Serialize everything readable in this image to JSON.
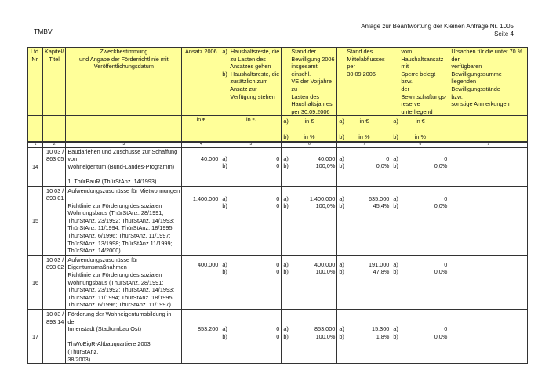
{
  "header": {
    "left": "TMBV",
    "right_line1": "Anlage zur Beantwortung der Kleinen Anfrage Nr. 1005",
    "right_line2": "Seite 4"
  },
  "columns": {
    "c1": [
      "Lfd.",
      "Nr."
    ],
    "c2": [
      "Kapitel/",
      "Titel"
    ],
    "c3": [
      "Zweckbestimmung",
      "und Angabe der Förderrichtlinie mit",
      "Veröffentlichungsdatum"
    ],
    "c4": [
      "Ansatz 2006"
    ],
    "c5": [
      "a)  Haushaltsreste, die",
      "     zu Lasten des",
      "     Ansatzes gehen",
      "b)  Haushaltsreste, die",
      "     zusätzlich zum",
      "     Ansatz zur",
      "     Verfügung stehen"
    ],
    "c6": [
      "Stand der",
      "Bewilligung 2006",
      "insgesamt einschl.",
      "VE der Vorjahre zu",
      "Lasten des",
      "Haushaltsjahres",
      "per 30.09.2006"
    ],
    "c7": [
      "Stand des",
      "Mittelabflusses per",
      "30.09.2006"
    ],
    "c8": [
      "vom",
      "Haushaltsansatz mit",
      "Sperre belegt bzw.",
      "der",
      "Bewirtschaftungs-",
      "reserve unterliegend"
    ],
    "c9": [
      "Ursachen für die unter 70 % der",
      "verfügbaren Bewilligungssumme",
      "liegenden Bewilligungsstände",
      "bzw.",
      "sonstige Anmerkungen"
    ]
  },
  "units": {
    "eur": "in €",
    "pct": "in %",
    "a": "a)",
    "b": "b)"
  },
  "index": [
    "1",
    "2",
    "3",
    "4",
    "5",
    "6",
    "7",
    "8",
    "9"
  ],
  "rows": [
    {
      "nr": "14",
      "kap": [
        "10 03 /",
        "863 05"
      ],
      "text": [
        "Baudarlehen und Zuschüsse zur Schaffung von",
        "Wohneigentum (Bund-Landes-Programm)",
        "",
        "1. ThürBauR (ThürStAnz. 14/1993)"
      ],
      "ansatz": "40.000",
      "c5a": "0",
      "c5b": "0",
      "c6a": "40.000",
      "c6b": "100,0%",
      "c7a": "0",
      "c7b": "0,0%",
      "c8a": "0",
      "c8b": "0,0%",
      "c9": ""
    },
    {
      "nr": "15",
      "kap": [
        "10 03 /",
        "893 01"
      ],
      "text": [
        "Aufwendungszuschüsse für Mietwohnungen",
        "",
        "Richtlinie zur Förderung des sozialen",
        "Wohnungsbaus (ThürStAnz. 28/1991;",
        "ThürStAnz. 23/1992; ThürStAnz. 14/1993;",
        "ThürStAnz. 11/1994; ThürStAnz. 18/1995;",
        "ThürStAnz. 6/1996; ThürStAnz. 11/1997;",
        "ThürStAnz. 13/1998; ThürStAnz.11/1999;",
        "ThürStAnz. 14/2000)"
      ],
      "ansatz": "1.400.000",
      "c5a": "0",
      "c5b": "0",
      "c6a": "1.400.000",
      "c6b": "100,0%",
      "c7a": "635.000",
      "c7b": "45,4%",
      "c8a": "0",
      "c8b": "0,0%",
      "c9": ""
    },
    {
      "nr": "16",
      "kap": [
        "10 03 /",
        "893 02"
      ],
      "text": [
        "Aufwendungszuschüsse für",
        "Eigentumsmaßnahmen",
        "Richtlinie zur Förderung des sozialen",
        "Wohnungsbaus (ThürStAnz. 28/1991;",
        "ThürStAnz. 23/1992; ThürStAnz. 14/1993;",
        "ThürStAnz. 11/1994; ThürStAnz. 18/1995;",
        "ThürStAnz. 6/1996; ThürStAnz. 11/1997)"
      ],
      "ansatz": "400.000",
      "c5a": "0",
      "c5b": "0",
      "c6a": "400.000",
      "c6b": "100,0%",
      "c7a": "191.000",
      "c7b": "47,8%",
      "c8a": "0",
      "c8b": "0,0%",
      "c9": ""
    },
    {
      "nr": "17",
      "kap": [
        "10 03 /",
        "893 14"
      ],
      "text": [
        "Förderung der Wohneigentumsbildung in der",
        "Innenstadt (Stadtumbau Ost)",
        "",
        "ThWoEigR-Altbauquartiere 2003 (ThürStAnz.",
        "38/2003)"
      ],
      "ansatz": "853.200",
      "c5a": "0",
      "c5b": "0",
      "c6a": "853.000",
      "c6b": "100,0%",
      "c7a": "15.300",
      "c7b": "1,8%",
      "c8a": "0",
      "c8b": "0,0%",
      "c9": ""
    }
  ]
}
